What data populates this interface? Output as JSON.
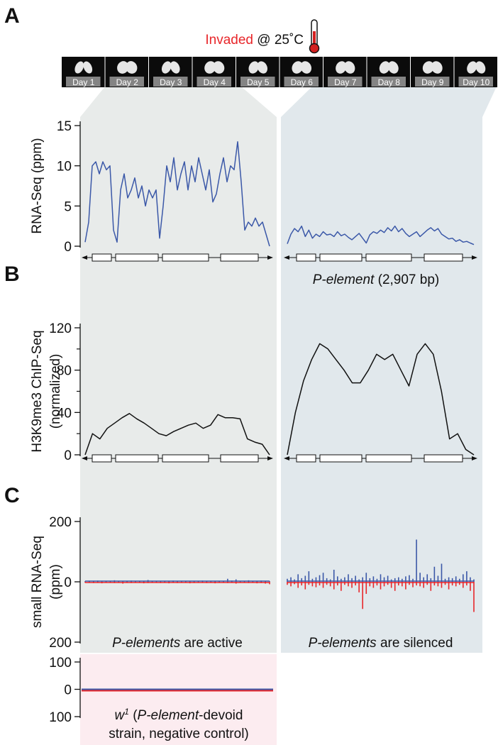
{
  "panels": [
    "A",
    "B",
    "C"
  ],
  "header": {
    "invaded": "Invaded",
    "condition": "@ 25˚C"
  },
  "days": [
    "Day 1",
    "Day 2",
    "Day 3",
    "Day 4",
    "Day 5",
    "Day 6",
    "Day 7",
    "Day 8",
    "Day 9",
    "Day 10"
  ],
  "gene": {
    "name": "P-element",
    "length": "(2,907 bp)"
  },
  "chart_data": [
    {
      "type": "line",
      "y_label": [
        "RNA-Seq (ppm)"
      ],
      "ylim": [
        0,
        15
      ],
      "yticks": [
        0,
        5,
        10,
        15
      ],
      "series": [
        {
          "color": "#3b58a8",
          "values": [
            0.5,
            3,
            10,
            10.5,
            9,
            10.5,
            9.5,
            10,
            2,
            0.5,
            7,
            9,
            6,
            7,
            8.5,
            6,
            7.5,
            5,
            7,
            6,
            7,
            1,
            5,
            10,
            8,
            11,
            7,
            9,
            10.5,
            7,
            10,
            8,
            11,
            9,
            7,
            9.5,
            5.5,
            6.5,
            9,
            11,
            8,
            10,
            9.5,
            13,
            8,
            2,
            3,
            2.5,
            3.5,
            2.5,
            3,
            1.5,
            0
          ]
        },
        {
          "color": "#3b58a8",
          "values": [
            0.3,
            1.5,
            2.2,
            1.8,
            2.5,
            1.2,
            2,
            1,
            1.5,
            1.2,
            1.8,
            1.4,
            1.5,
            1.2,
            1.8,
            1.3,
            1.5,
            1.1,
            0.8,
            1.2,
            1.6,
            1,
            0.4,
            1.4,
            1.8,
            1.6,
            2,
            1.7,
            2.3,
            1.9,
            2.5,
            1.8,
            2.2,
            1.6,
            1.2,
            1.5,
            1.8,
            1.2,
            1.6,
            2,
            2.3,
            1.9,
            2.2,
            1.5,
            1.2,
            0.9,
            1,
            0.6,
            0.8,
            0.5,
            0.6,
            0.4,
            0.2
          ]
        }
      ]
    },
    {
      "type": "line",
      "y_label": [
        "H3K9me3 ChIP-Seq",
        "(normalized)"
      ],
      "ylim": [
        0,
        120
      ],
      "yticks": [
        0,
        40,
        80,
        120
      ],
      "minor_yticks": [
        20,
        60,
        100
      ],
      "series": [
        {
          "color": "#111111",
          "values": [
            0,
            20,
            15,
            25,
            30,
            35,
            39,
            34,
            30,
            25,
            20,
            18,
            22,
            25,
            28,
            30,
            25,
            28,
            38,
            35,
            35,
            34,
            15,
            12,
            10,
            0
          ]
        },
        {
          "color": "#111111",
          "values": [
            0,
            40,
            70,
            90,
            105,
            100,
            90,
            80,
            68,
            68,
            80,
            95,
            90,
            95,
            80,
            65,
            95,
            105,
            95,
            60,
            15,
            20,
            5,
            0
          ]
        }
      ]
    },
    {
      "type": "spike",
      "y_label": [
        "small RNA-Seq",
        "(ppm)"
      ],
      "ylim": [
        -200,
        200
      ],
      "yticks": [
        {
          "value": -200,
          "label": "200"
        },
        0,
        200
      ],
      "series": [
        {
          "color": "#3b58a8",
          "values": [
            2,
            3,
            2,
            4,
            3,
            2,
            3,
            5,
            2,
            3,
            2,
            4,
            3,
            2,
            3,
            6,
            2,
            3,
            2,
            3,
            2,
            4,
            3,
            2,
            3,
            2,
            3,
            2,
            4,
            3,
            2,
            3,
            2,
            3,
            10,
            4,
            8,
            3,
            2,
            5,
            3,
            2,
            4,
            3,
            2
          ]
        },
        {
          "color": "#e8262a",
          "values": [
            -3,
            -2,
            -4,
            -3,
            -5,
            -2,
            -3,
            -4,
            -2,
            -6,
            -3,
            -4,
            -2,
            -3,
            -5,
            -4,
            -2,
            -3,
            -4,
            -3,
            -5,
            -2,
            -4,
            -3,
            -2,
            -5,
            -4,
            -3,
            -2,
            -4,
            -3,
            -5,
            -2,
            -3,
            -4,
            -3,
            -6,
            -2,
            -3,
            -4,
            -3,
            -5,
            -4,
            -6,
            -8
          ]
        },
        {
          "color": "#3b58a8",
          "values": [
            10,
            15,
            8,
            25,
            12,
            20,
            35,
            10,
            15,
            22,
            30,
            12,
            8,
            40,
            18,
            10,
            15,
            25,
            12,
            20,
            8,
            15,
            30,
            12,
            18,
            10,
            25,
            15,
            20,
            8,
            12,
            15,
            10,
            18,
            22,
            10,
            140,
            30,
            15,
            25,
            12,
            50,
            20,
            60,
            10,
            15,
            12,
            18,
            10,
            25,
            35,
            15,
            8
          ]
        },
        {
          "color": "#e8262a",
          "values": [
            -10,
            -15,
            -8,
            -20,
            -12,
            -25,
            -10,
            -15,
            -18,
            -12,
            -20,
            -10,
            -15,
            -25,
            -12,
            -30,
            -10,
            -15,
            -20,
            -12,
            -35,
            -90,
            -40,
            -15,
            -20,
            -12,
            -25,
            -15,
            -10,
            -20,
            -30,
            -12,
            -15,
            -25,
            -10,
            -18,
            -12,
            -15,
            -20,
            -10,
            -30,
            -12,
            -15,
            -20,
            -10,
            -25,
            -12,
            -15,
            -10,
            -20,
            -12,
            -30,
            -100
          ]
        }
      ],
      "annotations": [
        [
          "P-elements",
          " are active"
        ],
        [
          "P-elements",
          " are silenced"
        ]
      ]
    },
    {
      "type": "line",
      "ylim": [
        -100,
        100
      ],
      "yticks": [
        {
          "value": -100,
          "label": "100"
        },
        0,
        100
      ],
      "series": [
        {
          "color": "#3b58a8",
          "values": [
            0,
            0
          ]
        },
        {
          "color": "#e8262a",
          "values": [
            0,
            0
          ]
        }
      ],
      "annotation": [
        [
          "w",
          "1",
          " (",
          "P-element",
          "-devoid"
        ],
        [
          "strain, negative control)"
        ]
      ]
    }
  ]
}
